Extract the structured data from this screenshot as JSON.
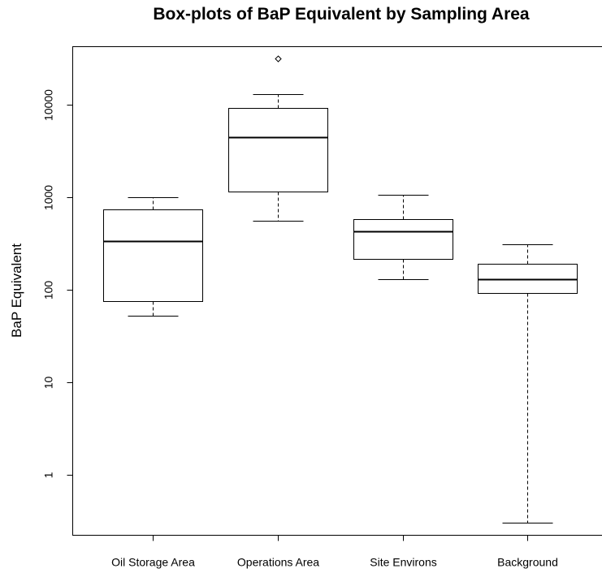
{
  "chart_data": {
    "type": "box",
    "title": "Box-plots of BaP Equivalent by Sampling Area",
    "xlabel": "",
    "ylabel": "BaP Equivalent",
    "y_scale": "log10",
    "ylim": [
      0.22,
      42000
    ],
    "y_ticks": [
      1,
      10,
      100,
      1000,
      10000
    ],
    "y_tick_labels": [
      "1",
      "10",
      "100",
      "1000",
      "10000"
    ],
    "grid": false,
    "legend": "none",
    "categories": [
      "Oil Storage Area",
      "Operations Area",
      "Site Environs",
      "Background"
    ],
    "boxes": [
      {
        "category": "Oil Storage Area",
        "whisker_low": 52,
        "q1": 75,
        "median": 330,
        "q3": 730,
        "whisker_high": 1000,
        "outliers": []
      },
      {
        "category": "Operations Area",
        "whisker_low": 550,
        "q1": 1150,
        "median": 4400,
        "q3": 9200,
        "whisker_high": 13000,
        "outliers": [
          31000
        ]
      },
      {
        "category": "Site Environs",
        "whisker_low": 130,
        "q1": 215,
        "median": 420,
        "q3": 570,
        "whisker_high": 1060,
        "outliers": []
      },
      {
        "category": "Background",
        "whisker_low": 0.3,
        "q1": 92,
        "median": 130,
        "q3": 190,
        "whisker_high": 310,
        "outliers": []
      }
    ]
  }
}
